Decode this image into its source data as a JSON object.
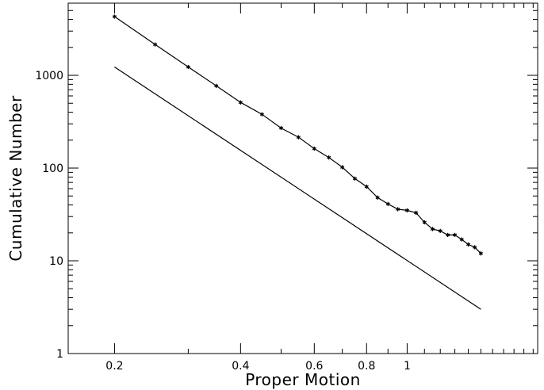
{
  "chart_data": {
    "type": "line",
    "title": "",
    "xlabel": "Proper Motion",
    "ylabel": "Cumulative Number",
    "x_scale": "log",
    "y_scale": "log",
    "xlim": [
      0.155,
      2.05
    ],
    "ylim": [
      1,
      6000
    ],
    "grid": false,
    "legend": "none",
    "x_ticks": [
      {
        "value": 0.2,
        "label": "0.2"
      },
      {
        "value": 0.4,
        "label": "0.4"
      },
      {
        "value": 0.6,
        "label": "0.6"
      },
      {
        "value": 0.8,
        "label": "0.8"
      },
      {
        "value": 1,
        "label": "1"
      }
    ],
    "y_ticks": [
      {
        "value": 1,
        "label": "1"
      },
      {
        "value": 10,
        "label": "10"
      },
      {
        "value": 100,
        "label": "100"
      },
      {
        "value": 1000,
        "label": "1000"
      }
    ],
    "series": [
      {
        "markers": true,
        "color": "#000000",
        "x": [
          0.2,
          0.25,
          0.3,
          0.35,
          0.4,
          0.45,
          0.5,
          0.55,
          0.6,
          0.65,
          0.7,
          0.75,
          0.8,
          0.85,
          0.9,
          0.95,
          1.0,
          1.05,
          1.1,
          1.15,
          1.2,
          1.25,
          1.3,
          1.35,
          1.4,
          1.45,
          1.5
        ],
        "y": [
          4300,
          2150,
          1230,
          770,
          510,
          380,
          270,
          215,
          162,
          130,
          102,
          77,
          63,
          48,
          41,
          36,
          35,
          33,
          26,
          22,
          21,
          19,
          19,
          17,
          15,
          14,
          12
        ]
      },
      {
        "markers": false,
        "color": "#000000",
        "x": [
          0.2,
          1.5
        ],
        "y": [
          1230,
          3
        ]
      }
    ]
  }
}
